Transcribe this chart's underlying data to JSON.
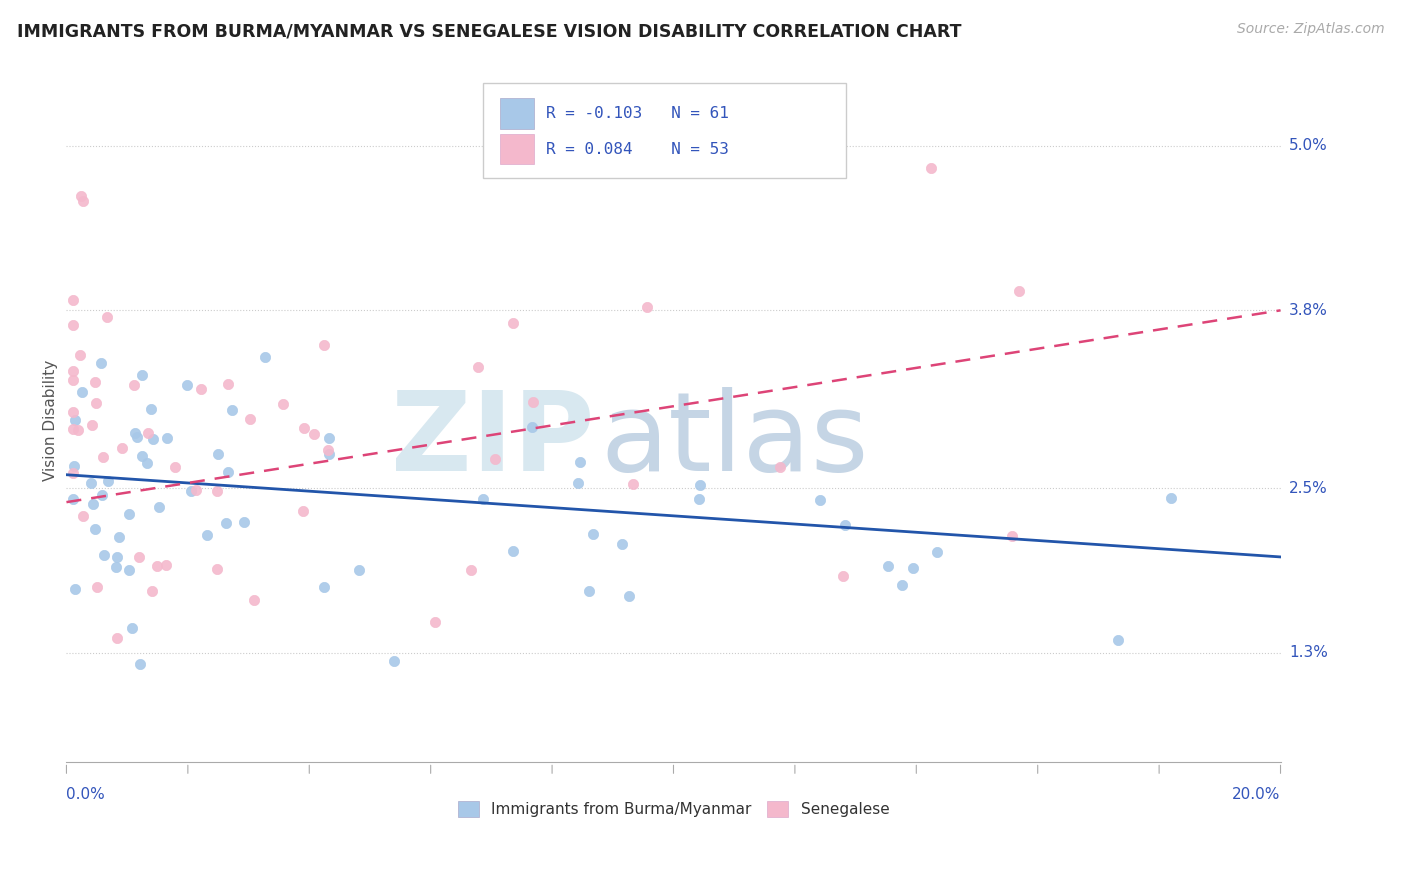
{
  "title": "IMMIGRANTS FROM BURMA/MYANMAR VS SENEGALESE VISION DISABILITY CORRELATION CHART",
  "source": "Source: ZipAtlas.com",
  "ylabel": "Vision Disability",
  "xlim": [
    0.0,
    0.2
  ],
  "ylim": [
    0.005,
    0.055
  ],
  "ytick_vals": [
    0.013,
    0.025,
    0.038,
    0.05
  ],
  "ytick_labels": [
    "1.3%",
    "2.5%",
    "3.8%",
    "5.0%"
  ],
  "blue_scatter_color": "#a8c8e8",
  "pink_scatter_color": "#f4b8cc",
  "blue_line_color": "#2255aa",
  "pink_line_color": "#dd4477",
  "text_color": "#3355bb",
  "R_blue": -0.103,
  "N_blue": 61,
  "R_pink": 0.084,
  "N_pink": 53,
  "legend_labels": [
    "Immigrants from Burma/Myanmar",
    "Senegalese"
  ],
  "watermark_zip": "ZIP",
  "watermark_atlas": "atlas",
  "blue_line_x0": 0.0,
  "blue_line_y0": 0.026,
  "blue_line_x1": 0.2,
  "blue_line_y1": 0.02,
  "pink_line_x0": 0.0,
  "pink_line_y0": 0.024,
  "pink_line_x1": 0.2,
  "pink_line_y1": 0.038
}
